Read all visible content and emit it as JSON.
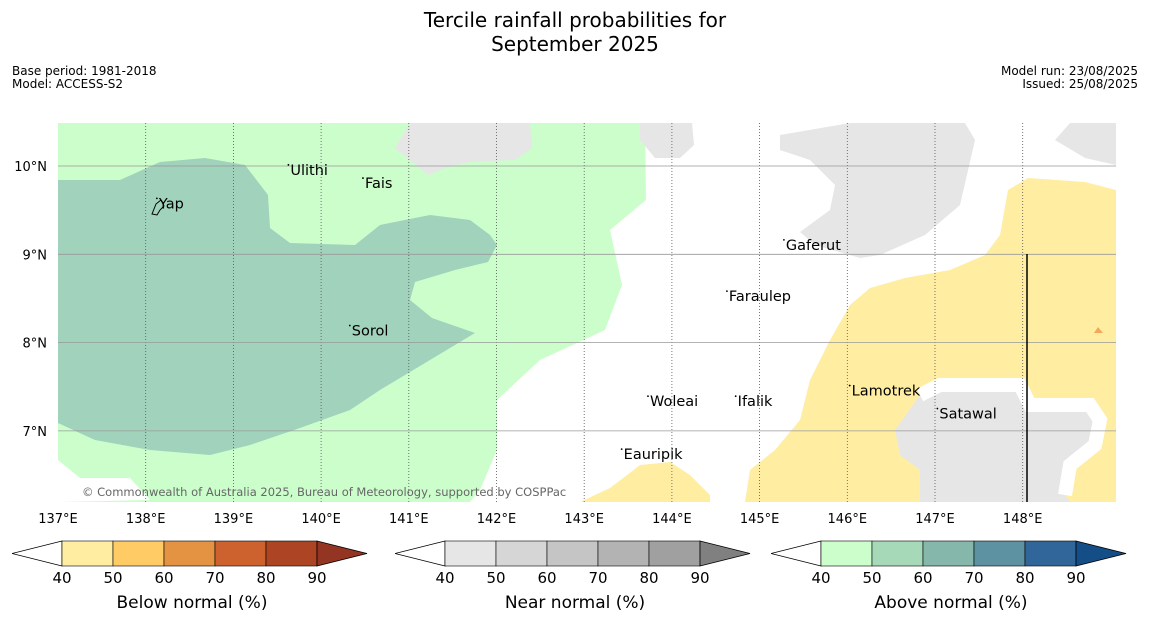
{
  "title": {
    "line1": "Tercile rainfall probabilities for",
    "line2": "September 2025"
  },
  "meta": {
    "base_period": "Base period: 1981-2018",
    "model": "Model: ACCESS-S2",
    "model_run": "Model run: 23/08/2025",
    "issued": "Issued: 25/08/2025"
  },
  "map": {
    "lon_range": [
      137,
      149
    ],
    "lat_range": [
      6.2,
      10.5
    ],
    "lon_ticks": [
      "137°E",
      "138°E",
      "139°E",
      "140°E",
      "141°E",
      "142°E",
      "143°E",
      "144°E",
      "145°E",
      "146°E",
      "147°E",
      "148°E"
    ],
    "lat_ticks": [
      "10°N",
      "9°N",
      "8°N",
      "7°N"
    ],
    "copyright": "© Commonwealth of Australia 2025, Bureau of Meteorology, supported by COSPPac",
    "colors": {
      "above_40_50": "#ccfecc",
      "above_50_60": "#a0d2bc",
      "below_40_50": "#ffeea2",
      "near_40_50": "#e6e6e6",
      "grid": "#999999"
    },
    "places": [
      {
        "name": "Yap",
        "lon": 138.15,
        "lat": 9.52
      },
      {
        "name": "Ulithi",
        "lon": 139.65,
        "lat": 9.9
      },
      {
        "name": "Fais",
        "lon": 140.5,
        "lat": 9.75
      },
      {
        "name": "Gaferut",
        "lon": 145.3,
        "lat": 9.05
      },
      {
        "name": "Faraulep",
        "lon": 144.65,
        "lat": 8.47
      },
      {
        "name": "Sorol",
        "lon": 140.35,
        "lat": 8.08
      },
      {
        "name": "Lamotrek",
        "lon": 146.05,
        "lat": 7.4
      },
      {
        "name": "Woleai",
        "lon": 143.75,
        "lat": 7.28
      },
      {
        "name": "Ifalik",
        "lon": 144.75,
        "lat": 7.28
      },
      {
        "name": "Satawal",
        "lon": 147.05,
        "lat": 7.14
      },
      {
        "name": "Eauripik",
        "lon": 143.45,
        "lat": 6.68
      }
    ]
  },
  "colorbars": [
    {
      "label": "Below normal (%)",
      "ticks": [
        "40",
        "50",
        "60",
        "70",
        "80",
        "90"
      ],
      "colors": [
        "#ffeea2",
        "#fecb65",
        "#e39342",
        "#cd622f",
        "#ad4423",
        "#943523"
      ]
    },
    {
      "label": "Near normal (%)",
      "ticks": [
        "40",
        "50",
        "60",
        "70",
        "80",
        "90"
      ],
      "colors": [
        "#e6e6e6",
        "#d6d6d6",
        "#c5c5c5",
        "#b3b3b3",
        "#a0a0a0",
        "#808080"
      ]
    },
    {
      "label": "Above normal (%)",
      "ticks": [
        "40",
        "50",
        "60",
        "70",
        "80",
        "90"
      ],
      "colors": [
        "#ccfecc",
        "#a6d9b8",
        "#85b8ab",
        "#5c92a1",
        "#30669a",
        "#154e86"
      ]
    }
  ]
}
